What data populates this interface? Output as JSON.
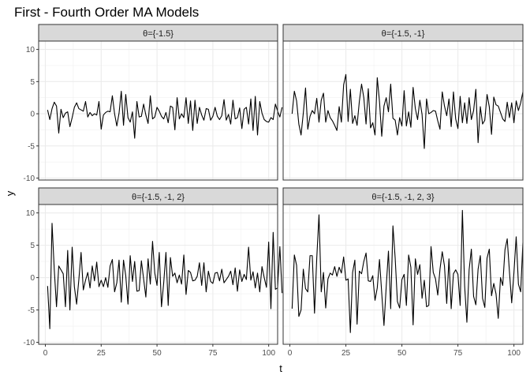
{
  "chart_data": {
    "type": "line",
    "title": "First - Fourth Order MA Models",
    "xlabel": "t",
    "ylabel": "y",
    "xlim": [
      -3,
      104
    ],
    "ylim": [
      -10.3,
      11.3
    ],
    "x_ticks": [
      0,
      25,
      50,
      75,
      100
    ],
    "y_ticks": [
      -10,
      -5,
      0,
      5,
      10
    ],
    "grid": true,
    "facets": [
      {
        "label": "θ={-1.5}",
        "x_start": 1,
        "values": [
          0.6,
          -0.9,
          0.8,
          1.8,
          1.2,
          -3.0,
          0.7,
          -0.6,
          0.1,
          0.3,
          -2.0,
          -0.6,
          1.0,
          1.7,
          0.8,
          0.6,
          0.4,
          1.9,
          -0.5,
          0.2,
          -0.3,
          0.0,
          -0.2,
          1.9,
          -2.4,
          -0.2,
          0.2,
          0.4,
          0.3,
          2.8,
          0.0,
          -1.9,
          0.1,
          3.5,
          -1.8,
          3.0,
          -0.6,
          -1.3,
          0.3,
          -3.8,
          1.9,
          -0.5,
          -0.4,
          1.5,
          -0.2,
          -1.5,
          2.8,
          -0.8,
          -0.5,
          1.0,
          0.4,
          -0.4,
          -0.8,
          0.2,
          -1.4,
          1.2,
          1.0,
          -2.5,
          2.5,
          -0.8,
          0.0,
          -0.6,
          2.5,
          -1.5,
          2.0,
          -2.6,
          2.1,
          -1.5,
          1.0,
          -0.2,
          -1.0,
          0.8,
          0.7,
          -1.0,
          -0.4,
          1.0,
          -0.4,
          -0.9,
          -0.3,
          2.2,
          -1.0,
          -0.1,
          -1.6,
          2.1,
          -0.8,
          -0.6,
          0.9,
          -2.3,
          0.7,
          1.0,
          -1.6,
          2.3,
          -2.6,
          2.7,
          -3.3,
          1.9,
          0.1,
          -0.9,
          -1.2,
          -1.3,
          -0.6,
          -0.9,
          1.5,
          0.4,
          -0.5,
          1.0
        ]
      },
      {
        "label": "θ={-1.5, -1}",
        "x_start": 1,
        "values": [
          0.0,
          3.5,
          2.0,
          -1.6,
          -3.3,
          0.1,
          4.0,
          -2.4,
          -0.4,
          0.5,
          0.0,
          2.4,
          -1.3,
          2.1,
          3.2,
          -1.3,
          0.5,
          -0.6,
          -1.1,
          -1.8,
          -2.6,
          1.1,
          -1.3,
          4.5,
          6.1,
          -1.2,
          3.8,
          -1.5,
          -0.3,
          -1.8,
          1.9,
          4.6,
          2.5,
          -1.6,
          3.9,
          -2.2,
          -1.4,
          -3.3,
          5.6,
          1.9,
          -3.5,
          1.2,
          2.5,
          0.3,
          4.6,
          -0.7,
          -1.0,
          -3.3,
          -0.6,
          -1.9,
          3.6,
          -1.9,
          0.3,
          -2.1,
          4.1,
          0.8,
          -0.9,
          2.1,
          -0.1,
          -5.4,
          2.3,
          0.0,
          0.2,
          0.5,
          0.4,
          -1.1,
          -2.4,
          3.4,
          1.2,
          -0.3,
          2.3,
          -2.0,
          3.4,
          -0.8,
          -2.3,
          2.7,
          -1.4,
          1.7,
          -1.5,
          2.5,
          -0.9,
          0.5,
          3.8,
          -4.5,
          1.1,
          -1.6,
          -1.0,
          3.0,
          1.1,
          -3.2,
          2.6,
          1.4,
          1.2,
          0.2,
          -0.8,
          -1.2,
          1.8,
          -0.6,
          1.7,
          -1.4,
          2.0,
          0.5,
          1.7,
          3.4
        ]
      },
      {
        "label": "θ={-1.5, -1, 2}",
        "x_start": 1,
        "values": [
          -1.3,
          -7.9,
          8.4,
          1.2,
          -4.5,
          1.8,
          1.2,
          0.6,
          -4.5,
          4.2,
          -5.0,
          4.7,
          -1.4,
          -4.1,
          -0.3,
          3.9,
          -1.9,
          -0.4,
          0.8,
          -1.6,
          1.8,
          -0.5,
          2.4,
          -1.4,
          -0.4,
          -1.4,
          0.0,
          -1.5,
          1.8,
          2.8,
          -2.2,
          -0.8,
          2.7,
          -3.8,
          2.7,
          0.3,
          -4.1,
          3.4,
          -0.6,
          2.5,
          -2.1,
          -2.0,
          2.6,
          -0.2,
          -3.0,
          2.9,
          -1.0,
          5.6,
          0.7,
          -1.2,
          3.9,
          -4.5,
          -0.8,
          3.9,
          -4.3,
          3.1,
          0.2,
          0.7,
          -0.8,
          0.4,
          -1.0,
          3.5,
          -2.6,
          1.1,
          0.8,
          -0.5,
          -0.4,
          0.2,
          2.3,
          -1.2,
          2.3,
          -2.2,
          1.0,
          -0.6,
          -0.9,
          0.7,
          0.8,
          -0.5,
          1.3,
          -0.8,
          -0.3,
          0.2,
          1.0,
          -1.1,
          1.5,
          -2.1,
          1.2,
          -0.6,
          0.5,
          -0.3,
          4.7,
          -0.4,
          0.9,
          -1.6,
          0.7,
          -2.2,
          1.7,
          0.0,
          -1.5,
          5.5,
          -4.8,
          7.0,
          -1.8,
          -1.6,
          4.8,
          -2.4
        ]
      },
      {
        "label": "θ={-1.5, -1, 2, 3}",
        "x_start": 1,
        "values": [
          -4.8,
          3.5,
          1.9,
          -6.0,
          -5.0,
          1.3,
          -1.7,
          -2.2,
          3.4,
          3.4,
          -5.5,
          3.0,
          9.7,
          -2.2,
          0.8,
          -4.7,
          -0.2,
          0.7,
          0.4,
          1.7,
          0.2,
          1.6,
          0.7,
          3.2,
          -0.4,
          -0.2,
          -8.5,
          0.8,
          2.7,
          -7.2,
          1.0,
          0.6,
          2.5,
          3.8,
          -0.5,
          -0.6,
          0.3,
          -3.5,
          -1.6,
          2.8,
          -2.4,
          -7.4,
          -1.4,
          4.1,
          -4.8,
          8.0,
          3.0,
          -3.7,
          -4.7,
          -0.3,
          0.5,
          -4.3,
          3.5,
          1.6,
          -7.3,
          2.9,
          0.5,
          2.0,
          -3.2,
          -0.4,
          -4.5,
          -4.3,
          4.8,
          0.8,
          -0.2,
          -2.7,
          1.3,
          4.0,
          1.8,
          -4.0,
          2.9,
          -4.8,
          0.6,
          1.2,
          0.5,
          -4.3,
          10.4,
          -1.3,
          -6.9,
          1.2,
          4.4,
          -2.9,
          -4.2,
          1.3,
          3.4,
          -3.2,
          -4.6,
          3.0,
          4.4,
          -2.8,
          -0.9,
          -2.5,
          -6.3,
          0.0,
          -1.2,
          4.3,
          6.0,
          0.9,
          -3.9,
          0.8,
          6.3,
          -1.0,
          -2.2,
          5.4
        ]
      }
    ]
  }
}
